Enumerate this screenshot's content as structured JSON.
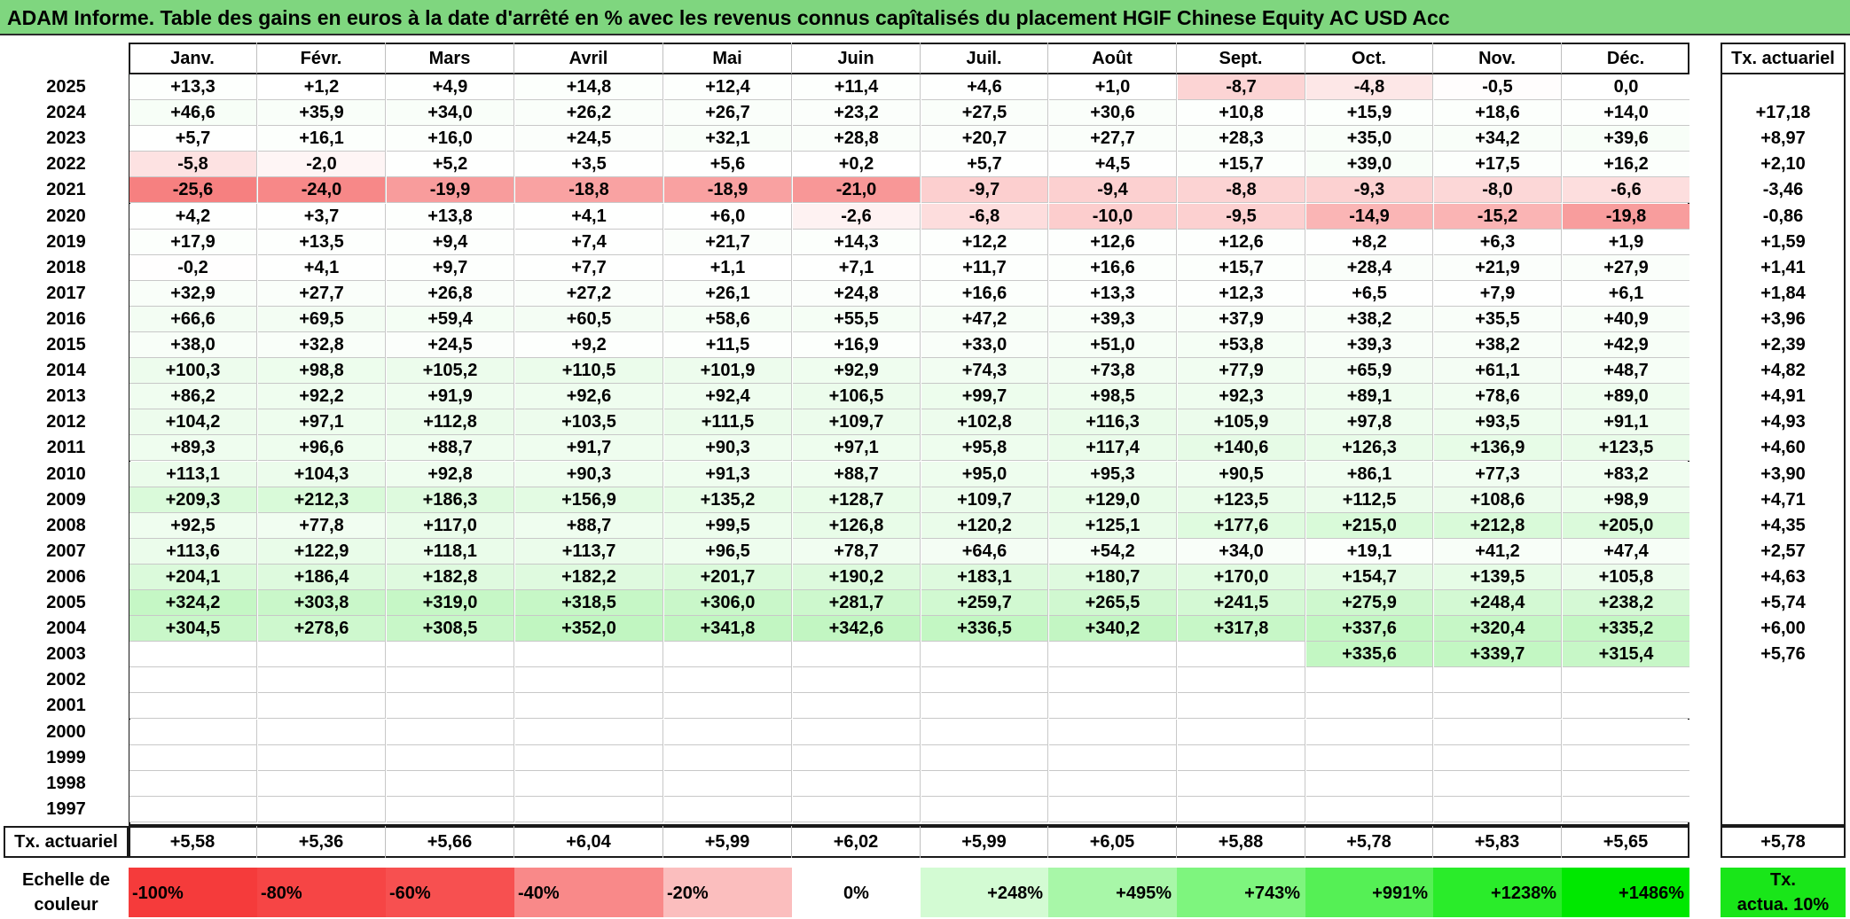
{
  "title": "ADAM Informe. Table des gains en euros à la date d'arrêté en % avec les revenus connus capîtalisés du placement HGIF Chinese Equity AC USD Acc",
  "months": [
    "Janv.",
    "Févr.",
    "Mars",
    "Avril",
    "Mai",
    "Juin",
    "Juil.",
    "Août",
    "Sept.",
    "Oct.",
    "Nov.",
    "Déc."
  ],
  "annual_header": "Tx. actuariel",
  "footer_label": "Tx. actuariel",
  "rows": [
    {
      "year": "2025",
      "values": [
        "+13,3",
        "+1,2",
        "+4,9",
        "+14,8",
        "+12,4",
        "+11,4",
        "+4,6",
        "+1,0",
        "-8,7",
        "-4,8",
        "-0,5",
        "0,0"
      ],
      "annual": ""
    },
    {
      "year": "2024",
      "values": [
        "+46,6",
        "+35,9",
        "+34,0",
        "+26,2",
        "+26,7",
        "+23,2",
        "+27,5",
        "+30,6",
        "+10,8",
        "+15,9",
        "+18,6",
        "+14,0"
      ],
      "annual": "+17,18"
    },
    {
      "year": "2023",
      "values": [
        "+5,7",
        "+16,1",
        "+16,0",
        "+24,5",
        "+32,1",
        "+28,8",
        "+20,7",
        "+27,7",
        "+28,3",
        "+35,0",
        "+34,2",
        "+39,6"
      ],
      "annual": "+8,97"
    },
    {
      "year": "2022",
      "values": [
        "-5,8",
        "-2,0",
        "+5,2",
        "+3,5",
        "+5,6",
        "+0,2",
        "+5,7",
        "+4,5",
        "+15,7",
        "+39,0",
        "+17,5",
        "+16,2"
      ],
      "annual": "+2,10"
    },
    {
      "year": "2021",
      "values": [
        "-25,6",
        "-24,0",
        "-19,9",
        "-18,8",
        "-18,9",
        "-21,0",
        "-9,7",
        "-9,4",
        "-8,8",
        "-9,3",
        "-8,0",
        "-6,6"
      ],
      "annual": "-3,46"
    },
    {
      "year": "2020",
      "values": [
        "+4,2",
        "+3,7",
        "+13,8",
        "+4,1",
        "+6,0",
        "-2,6",
        "-6,8",
        "-10,0",
        "-9,5",
        "-14,9",
        "-15,2",
        "-19,8"
      ],
      "annual": "-0,86"
    },
    {
      "year": "2019",
      "values": [
        "+17,9",
        "+13,5",
        "+9,4",
        "+7,4",
        "+21,7",
        "+14,3",
        "+12,2",
        "+12,6",
        "+12,6",
        "+8,2",
        "+6,3",
        "+1,9"
      ],
      "annual": "+1,59"
    },
    {
      "year": "2018",
      "values": [
        "-0,2",
        "+4,1",
        "+9,7",
        "+7,7",
        "+1,1",
        "+7,1",
        "+11,7",
        "+16,6",
        "+15,7",
        "+28,4",
        "+21,9",
        "+27,9"
      ],
      "annual": "+1,41"
    },
    {
      "year": "2017",
      "values": [
        "+32,9",
        "+27,7",
        "+26,8",
        "+27,2",
        "+26,1",
        "+24,8",
        "+16,6",
        "+13,3",
        "+12,3",
        "+6,5",
        "+7,9",
        "+6,1"
      ],
      "annual": "+1,84"
    },
    {
      "year": "2016",
      "values": [
        "+66,6",
        "+69,5",
        "+59,4",
        "+60,5",
        "+58,6",
        "+55,5",
        "+47,2",
        "+39,3",
        "+37,9",
        "+38,2",
        "+35,5",
        "+40,9"
      ],
      "annual": "+3,96"
    },
    {
      "year": "2015",
      "values": [
        "+38,0",
        "+32,8",
        "+24,5",
        "+9,2",
        "+11,5",
        "+16,9",
        "+33,0",
        "+51,0",
        "+53,8",
        "+39,3",
        "+38,2",
        "+42,9"
      ],
      "annual": "+2,39"
    },
    {
      "year": "2014",
      "values": [
        "+100,3",
        "+98,8",
        "+105,2",
        "+110,5",
        "+101,9",
        "+92,9",
        "+74,3",
        "+73,8",
        "+77,9",
        "+65,9",
        "+61,1",
        "+48,7"
      ],
      "annual": "+4,82"
    },
    {
      "year": "2013",
      "values": [
        "+86,2",
        "+92,2",
        "+91,9",
        "+92,6",
        "+92,4",
        "+106,5",
        "+99,7",
        "+98,5",
        "+92,3",
        "+89,1",
        "+78,6",
        "+89,0"
      ],
      "annual": "+4,91"
    },
    {
      "year": "2012",
      "values": [
        "+104,2",
        "+97,1",
        "+112,8",
        "+103,5",
        "+111,5",
        "+109,7",
        "+102,8",
        "+116,3",
        "+105,9",
        "+97,8",
        "+93,5",
        "+91,1"
      ],
      "annual": "+4,93"
    },
    {
      "year": "2011",
      "values": [
        "+89,3",
        "+96,6",
        "+88,7",
        "+91,7",
        "+90,3",
        "+97,1",
        "+95,8",
        "+117,4",
        "+140,6",
        "+126,3",
        "+136,9",
        "+123,5"
      ],
      "annual": "+4,60"
    },
    {
      "year": "2010",
      "values": [
        "+113,1",
        "+104,3",
        "+92,8",
        "+90,3",
        "+91,3",
        "+88,7",
        "+95,0",
        "+95,3",
        "+90,5",
        "+86,1",
        "+77,3",
        "+83,2"
      ],
      "annual": "+3,90"
    },
    {
      "year": "2009",
      "values": [
        "+209,3",
        "+212,3",
        "+186,3",
        "+156,9",
        "+135,2",
        "+128,7",
        "+109,7",
        "+129,0",
        "+123,5",
        "+112,5",
        "+108,6",
        "+98,9"
      ],
      "annual": "+4,71"
    },
    {
      "year": "2008",
      "values": [
        "+92,5",
        "+77,8",
        "+117,0",
        "+88,7",
        "+99,5",
        "+126,8",
        "+120,2",
        "+125,1",
        "+177,6",
        "+215,0",
        "+212,8",
        "+205,0"
      ],
      "annual": "+4,35"
    },
    {
      "year": "2007",
      "values": [
        "+113,6",
        "+122,9",
        "+118,1",
        "+113,7",
        "+96,5",
        "+78,7",
        "+64,6",
        "+54,2",
        "+34,0",
        "+19,1",
        "+41,2",
        "+47,4"
      ],
      "annual": "+2,57"
    },
    {
      "year": "2006",
      "values": [
        "+204,1",
        "+186,4",
        "+182,8",
        "+182,2",
        "+201,7",
        "+190,2",
        "+183,1",
        "+180,7",
        "+170,0",
        "+154,7",
        "+139,5",
        "+105,8"
      ],
      "annual": "+4,63"
    },
    {
      "year": "2005",
      "values": [
        "+324,2",
        "+303,8",
        "+319,0",
        "+318,5",
        "+306,0",
        "+281,7",
        "+259,7",
        "+265,5",
        "+241,5",
        "+275,9",
        "+248,4",
        "+238,2"
      ],
      "annual": "+5,74"
    },
    {
      "year": "2004",
      "values": [
        "+304,5",
        "+278,6",
        "+308,5",
        "+352,0",
        "+341,8",
        "+342,6",
        "+336,5",
        "+340,2",
        "+317,8",
        "+337,6",
        "+320,4",
        "+335,2"
      ],
      "annual": "+6,00"
    },
    {
      "year": "2003",
      "values": [
        "",
        "",
        "",
        "",
        "",
        "",
        "",
        "",
        "",
        "+335,6",
        "+339,7",
        "+315,4"
      ],
      "annual": "+5,76"
    },
    {
      "year": "2002",
      "values": [
        "",
        "",
        "",
        "",
        "",
        "",
        "",
        "",
        "",
        "",
        "",
        ""
      ],
      "annual": ""
    },
    {
      "year": "2001",
      "values": [
        "",
        "",
        "",
        "",
        "",
        "",
        "",
        "",
        "",
        "",
        "",
        ""
      ],
      "annual": ""
    },
    {
      "year": "2000",
      "values": [
        "",
        "",
        "",
        "",
        "",
        "",
        "",
        "",
        "",
        "",
        "",
        ""
      ],
      "annual": ""
    },
    {
      "year": "1999",
      "values": [
        "",
        "",
        "",
        "",
        "",
        "",
        "",
        "",
        "",
        "",
        "",
        ""
      ],
      "annual": ""
    },
    {
      "year": "1998",
      "values": [
        "",
        "",
        "",
        "",
        "",
        "",
        "",
        "",
        "",
        "",
        "",
        ""
      ],
      "annual": ""
    },
    {
      "year": "1997",
      "values": [
        "",
        "",
        "",
        "",
        "",
        "",
        "",
        "",
        "",
        "",
        "",
        ""
      ],
      "annual": ""
    }
  ],
  "footer_values": [
    "+5,58",
    "+5,36",
    "+5,66",
    "+6,04",
    "+5,99",
    "+6,02",
    "+5,99",
    "+6,05",
    "+5,88",
    "+5,78",
    "+5,83",
    "+5,65"
  ],
  "footer_annual": "+5,78",
  "scale": {
    "label_line1": "Echelle de",
    "label_line2": "couleur",
    "items": [
      {
        "label": "-100%",
        "color": "#f53b3b"
      },
      {
        "label": "-80%",
        "color": "#f64545"
      },
      {
        "label": "-60%",
        "color": "#f75050"
      },
      {
        "label": "-40%",
        "color": "#f98989"
      },
      {
        "label": "-20%",
        "color": "#fbbebe"
      },
      {
        "label": "0%",
        "color": "#ffffff"
      },
      {
        "label": "+248%",
        "color": "#d3fbd3"
      },
      {
        "label": "+495%",
        "color": "#a8f7a8"
      },
      {
        "label": "+743%",
        "color": "#7ef57e"
      },
      {
        "label": "+991%",
        "color": "#55f055"
      },
      {
        "label": "+1238%",
        "color": "#2aec2a"
      },
      {
        "label": "+1486%",
        "color": "#00e800"
      }
    ],
    "annual_label_line1": "Tx.",
    "annual_label_line2": "actua. 10%",
    "annual_color": "#19e619"
  }
}
